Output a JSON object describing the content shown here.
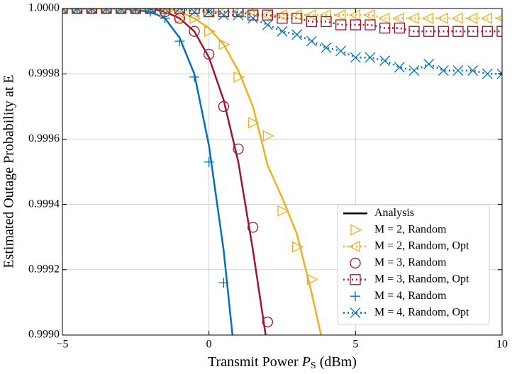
{
  "chart_data": {
    "type": "line",
    "x_label": {
      "text": "Transmit Power",
      "symbol": "P",
      "subscript": "S",
      "unit": "(dBm)"
    },
    "y_label": "Estimated Outage Probability at E",
    "xlim": [
      -5,
      10
    ],
    "ylim": [
      0.999,
      1.0
    ],
    "xticks": [
      {
        "value": -5,
        "label": "−5"
      },
      0,
      5,
      10
    ],
    "yticks": [
      {
        "value": 0.999,
        "label": "0.9990"
      },
      {
        "value": 0.9992,
        "label": "0.9992"
      },
      {
        "value": 0.9994,
        "label": "0.9994"
      },
      {
        "value": 0.9996,
        "label": "0.9996"
      },
      {
        "value": 0.9998,
        "label": "0.9998"
      },
      {
        "value": 1.0,
        "label": "1.0000"
      }
    ],
    "grid": true,
    "legend": "lower right",
    "analysis": {
      "name": "Analysis",
      "color": "#000000",
      "x": [
        -5,
        -4,
        -3,
        -2,
        -1.5,
        -1,
        -0.5,
        0,
        0.5,
        1,
        1.5,
        2,
        2.5,
        3,
        3.5,
        4
      ],
      "curves": [
        {
          "color": "#0072bd",
          "values": [
            1.0,
            1.0,
            1.0,
            0.99999,
            0.99997,
            0.99991,
            0.9998,
            0.99958,
            0.99926,
            0.99883,
            null,
            null,
            null,
            null,
            null,
            null
          ]
        },
        {
          "color": "#a2142f",
          "values": [
            1.0,
            1.0,
            1.0,
            1.0,
            0.99999,
            0.99997,
            0.99993,
            0.99985,
            0.99972,
            0.99953,
            0.99926,
            0.99896,
            null,
            null,
            null,
            null
          ]
        },
        {
          "color": "#edb120",
          "values": [
            1.0,
            1.0,
            1.0,
            1.0,
            1.0,
            0.99999,
            0.99997,
            0.99994,
            0.99989,
            0.99981,
            0.9997,
            0.99952,
            0.99942,
            0.99931,
            0.99913,
            0.99893
          ]
        }
      ]
    },
    "x": [
      -5,
      -4.5,
      -4,
      -3.5,
      -3,
      -2.5,
      -2,
      -1.5,
      -1,
      -0.5,
      0,
      0.5,
      1,
      1.5,
      2,
      2.5,
      3,
      3.5,
      4,
      4.5,
      5,
      5.5,
      6,
      6.5,
      7,
      7.5,
      8,
      8.5,
      9,
      9.5,
      10
    ],
    "series": [
      {
        "name": "M = 2, Random",
        "color": "#edb120",
        "marker": "triangle-right",
        "line": "none",
        "values": [
          1.0,
          1.0,
          1.0,
          1.0,
          1.0,
          1.0,
          1.0,
          0.99999,
          0.99997,
          0.99997,
          0.99993,
          0.99989,
          0.99979,
          0.99965,
          0.99961,
          0.99938,
          0.99927,
          0.99917,
          null,
          null,
          null,
          null,
          null,
          null,
          null,
          null,
          null,
          null,
          null,
          null,
          null
        ]
      },
      {
        "name": "M = 2, Random, Opt",
        "color": "#edb120",
        "marker": "triangle-left",
        "line": "dotted",
        "values": [
          1.0,
          1.0,
          1.0,
          1.0,
          1.0,
          1.0,
          1.0,
          1.0,
          1.0,
          1.0,
          0.99999,
          0.99999,
          0.99999,
          0.99999,
          0.99998,
          0.99998,
          0.99998,
          0.99998,
          0.99998,
          0.99998,
          0.99998,
          0.99998,
          0.99997,
          0.99997,
          0.99997,
          0.99997,
          0.99997,
          0.99997,
          0.99997,
          0.99997,
          0.99997
        ]
      },
      {
        "name": "M = 3, Random",
        "color": "#a2142f",
        "marker": "circle",
        "line": "none",
        "values": [
          1.0,
          1.0,
          1.0,
          1.0,
          1.0,
          1.0,
          1.0,
          0.99999,
          0.99997,
          0.99993,
          0.99986,
          0.9997,
          0.99957,
          0.99933,
          0.99904,
          null,
          null,
          null,
          null,
          null,
          null,
          null,
          null,
          null,
          null,
          null,
          null,
          null,
          null,
          null,
          null
        ]
      },
      {
        "name": "M = 3, Random, Opt",
        "color": "#a2142f",
        "marker": "square",
        "line": "dotted",
        "values": [
          1.0,
          1.0,
          1.0,
          1.0,
          1.0,
          1.0,
          1.0,
          1.0,
          1.0,
          1.0,
          0.99999,
          0.99999,
          0.99999,
          0.99998,
          0.99998,
          0.99997,
          0.99997,
          0.99996,
          0.99996,
          0.99995,
          0.99995,
          0.99995,
          0.99994,
          0.99994,
          0.99993,
          0.99993,
          0.99993,
          0.99993,
          0.99993,
          0.99993,
          0.99993
        ]
      },
      {
        "name": "M = 4, Random",
        "color": "#0072bd",
        "marker": "plus",
        "line": "none",
        "values": [
          1.0,
          1.0,
          1.0,
          1.0,
          1.0,
          1.0,
          0.99999,
          0.99997,
          0.9999,
          0.99979,
          0.99953,
          0.99916,
          null,
          null,
          null,
          null,
          null,
          null,
          null,
          null,
          null,
          null,
          null,
          null,
          null,
          null,
          null,
          null,
          null,
          null,
          null
        ]
      },
      {
        "name": "M = 4, Random, Opt",
        "color": "#0072bd",
        "marker": "cross",
        "line": "dotted",
        "values": [
          1.0,
          1.0,
          1.0,
          1.0,
          1.0,
          1.0,
          1.0,
          1.0,
          1.0,
          0.99999,
          0.99999,
          0.99998,
          0.99998,
          0.99997,
          0.99995,
          0.99993,
          0.99992,
          0.9999,
          0.99988,
          0.99987,
          0.99985,
          0.99985,
          0.99984,
          0.99982,
          0.99981,
          0.99983,
          0.99981,
          0.99981,
          0.99981,
          0.9998,
          0.9998
        ]
      }
    ]
  }
}
